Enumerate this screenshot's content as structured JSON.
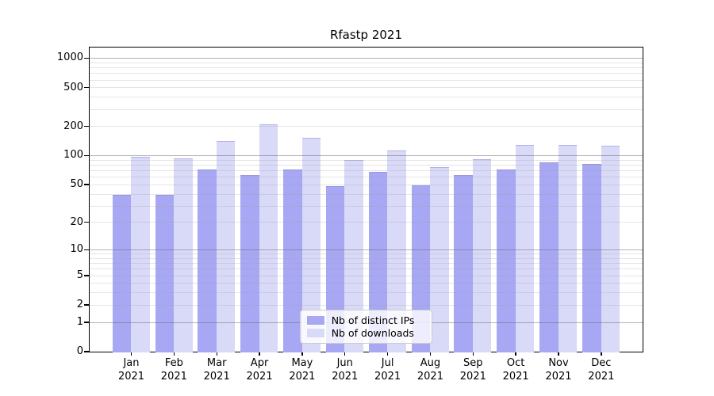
{
  "chart_data": {
    "type": "bar",
    "title": "Rfastp 2021",
    "categories": [
      "Jan",
      "Feb",
      "Mar",
      "Apr",
      "May",
      "Jun",
      "Jul",
      "Aug",
      "Sep",
      "Oct",
      "Nov",
      "Dec"
    ],
    "year": "2021",
    "series": [
      {
        "name": "Nb of distinct IPs",
        "color": "#a7a7f3",
        "values": [
          39,
          39,
          72,
          62,
          71,
          48,
          68,
          49,
          62,
          72,
          85,
          82
        ]
      },
      {
        "name": "Nb of downloads",
        "color": "#d9d9f8",
        "values": [
          97,
          93,
          140,
          210,
          151,
          89,
          113,
          76,
          92,
          127,
          128,
          125
        ]
      }
    ],
    "y_axis": {
      "scale": "log1p",
      "ticks": [
        1000,
        500,
        200,
        100,
        50,
        20,
        10,
        5,
        2,
        1,
        0
      ],
      "major_gridlines": [
        1,
        10,
        100,
        1000
      ],
      "minor_gridlines": [
        2,
        3,
        4,
        5,
        6,
        7,
        8,
        9,
        20,
        30,
        40,
        50,
        60,
        70,
        80,
        90,
        200,
        300,
        400,
        500,
        600,
        700,
        800,
        900
      ]
    },
    "legend_position": "bottom-center",
    "grid": "on"
  },
  "colors": {
    "distinct_ips": "#a7a7f3",
    "downloads": "#d9d9f8",
    "axis": "#000000",
    "major_grid": "#b0b0b0",
    "minor_grid": "#e8e8e8",
    "legend_border": "#cccccc"
  }
}
